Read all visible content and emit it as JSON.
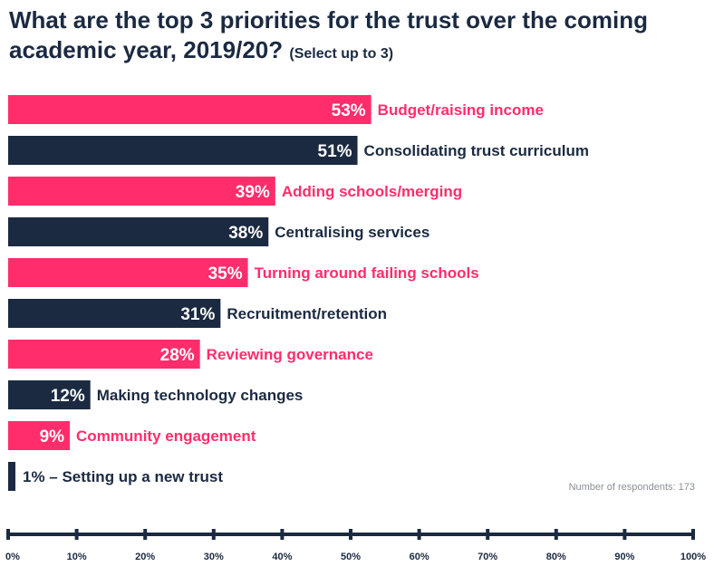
{
  "title": {
    "main": "What are the top 3 priorities for the trust over the coming academic year, 2019/20?",
    "sub": "(Select up to 3)"
  },
  "note": "Number of respondents: 173",
  "colors": {
    "pink": "#ff2d6b",
    "navy": "#1b2a41"
  },
  "chart_data": {
    "type": "bar",
    "orientation": "horizontal",
    "categories": [
      "Budget/raising income",
      "Consolidating trust curriculum",
      "Adding schools/merging",
      "Centralising services",
      "Turning around failing schools",
      "Recruitment/retention",
      "Reviewing governance",
      "Making technology changes",
      "Community engagement",
      "Setting up a new trust"
    ],
    "values": [
      53,
      51,
      39,
      38,
      35,
      31,
      28,
      12,
      9,
      1
    ],
    "value_labels": [
      "53%",
      "51%",
      "39%",
      "38%",
      "35%",
      "31%",
      "28%",
      "12%",
      "9%",
      "1% – Setting up a new trust"
    ],
    "bar_colors": [
      "pink",
      "navy",
      "pink",
      "navy",
      "pink",
      "navy",
      "pink",
      "navy",
      "pink",
      "navy"
    ],
    "xlim": [
      0,
      100
    ],
    "x_ticks": [
      "0%",
      "10%",
      "20%",
      "30%",
      "40%",
      "50%",
      "60%",
      "70%",
      "80%",
      "90%",
      "100%"
    ],
    "grid": false,
    "legend": "none"
  }
}
